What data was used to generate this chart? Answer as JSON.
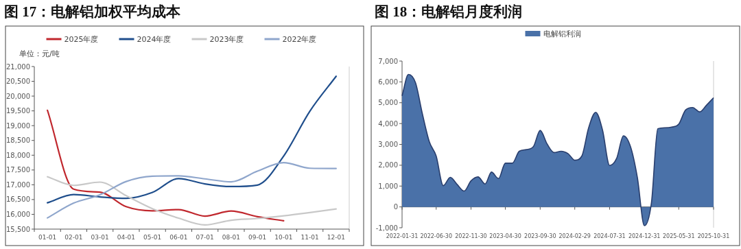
{
  "chart_data": [
    {
      "type": "line",
      "title": "图 17：电解铝加权平均成本",
      "ylabel": "单位：元/吨",
      "legend": "top",
      "categories": [
        "01-01",
        "02-01",
        "03-01",
        "04-01",
        "05-01",
        "06-01",
        "07-01",
        "08-01",
        "09-01",
        "10-01",
        "11-01",
        "12-01"
      ],
      "ylim": [
        15500,
        21000
      ],
      "yticks": [
        {
          "value": 15500,
          "label": "15,500"
        },
        {
          "value": 16000,
          "label": "16,000"
        },
        {
          "value": 16500,
          "label": "16,500"
        },
        {
          "value": 17000,
          "label": "17,000"
        },
        {
          "value": 17500,
          "label": "17,500"
        },
        {
          "value": 18000,
          "label": "18,000"
        },
        {
          "value": 18500,
          "label": "18,500"
        },
        {
          "value": 19000,
          "label": "19,000"
        },
        {
          "value": 19500,
          "label": "19,500"
        },
        {
          "value": 20000,
          "label": "20,000"
        },
        {
          "value": 20500,
          "label": "20,500"
        },
        {
          "value": 21000,
          "label": "21,000"
        }
      ],
      "series": [
        {
          "name": "2025年度",
          "color": "#c0272d",
          "values": [
            19520,
            16850,
            16750,
            16260,
            16120,
            16160,
            15940,
            16110,
            15920,
            15780,
            null,
            null
          ]
        },
        {
          "name": "2024年度",
          "color": "#1f4e8c",
          "values": [
            16390,
            16670,
            16590,
            16540,
            16740,
            17210,
            17030,
            16940,
            16990,
            17970,
            19490,
            20670
          ]
        },
        {
          "name": "2023年度",
          "color": "#c8c8c8",
          "values": [
            17270,
            16980,
            17090,
            16630,
            16190,
            15870,
            15640,
            15800,
            15860,
            15950,
            16060,
            16180
          ]
        },
        {
          "name": "2022年度",
          "color": "#8fa6cc",
          "values": [
            15880,
            16380,
            16660,
            17110,
            17290,
            17300,
            17200,
            17100,
            17460,
            17750,
            17560,
            17550
          ]
        }
      ]
    },
    {
      "type": "area",
      "title": "图 18：电解铝月度利润",
      "legend": "top",
      "x": [
        "2022-01-31",
        "2022-02-28",
        "2022-03-31",
        "2022-04-30",
        "2022-05-31",
        "2022-06-30",
        "2022-07-31",
        "2022-08-31",
        "2022-09-30",
        "2022-10-31",
        "2022-11-30",
        "2022-12-31",
        "2023-01-31",
        "2023-02-28",
        "2023-03-31",
        "2023-04-30",
        "2023-05-31",
        "2023-06-30",
        "2023-07-31",
        "2023-08-31",
        "2023-09-30",
        "2023-10-31",
        "2023-11-30",
        "2023-12-31",
        "2024-01-31",
        "2024-02-29",
        "2024-03-31",
        "2024-04-30",
        "2024-05-31",
        "2024-06-30",
        "2024-07-31",
        "2024-08-31",
        "2024-09-30",
        "2024-10-31",
        "2024-11-30",
        "2024-12-31",
        "2025-01-31",
        "2025-02-28",
        "2025-03-31",
        "2025-04-30",
        "2025-05-31",
        "2025-06-30",
        "2025-07-31",
        "2025-08-31",
        "2025-09-30",
        "2025-10-31"
      ],
      "xlim": [
        "2022-01-31",
        "2025-10-31"
      ],
      "xticks": [
        "2022-01-31",
        "2022-06-30",
        "2022-11-30",
        "2023-04-30",
        "2023-09-30",
        "2024-02-29",
        "2024-07-31",
        "2024-12-31",
        "2025-05-31",
        "2025-10-31"
      ],
      "ylim": [
        -1000,
        7000
      ],
      "yticks": [
        {
          "value": -1000,
          "label": "-1,000"
        },
        0,
        {
          "value": 1000,
          "label": "1,000"
        },
        {
          "value": 2000,
          "label": "2,000"
        },
        {
          "value": 3000,
          "label": "3,000"
        },
        {
          "value": 4000,
          "label": "4,000"
        },
        {
          "value": 5000,
          "label": "5,000"
        },
        {
          "value": 6000,
          "label": "6,000"
        },
        {
          "value": 7000,
          "label": "7,000"
        }
      ],
      "series": [
        {
          "name": "电解铝利润",
          "color": "#4a71a8",
          "values": [
            5330,
            6360,
            5960,
            4480,
            3120,
            2440,
            1020,
            1420,
            1080,
            760,
            1250,
            1440,
            1100,
            1670,
            1360,
            2100,
            2100,
            2670,
            2750,
            2890,
            3670,
            3010,
            2610,
            2670,
            2550,
            2240,
            2440,
            3800,
            4540,
            3690,
            1990,
            2330,
            3410,
            2890,
            1420,
            -900,
            200,
            3750,
            3800,
            3830,
            3970,
            4650,
            4770,
            4560,
            4880,
            5240
          ]
        }
      ]
    }
  ]
}
